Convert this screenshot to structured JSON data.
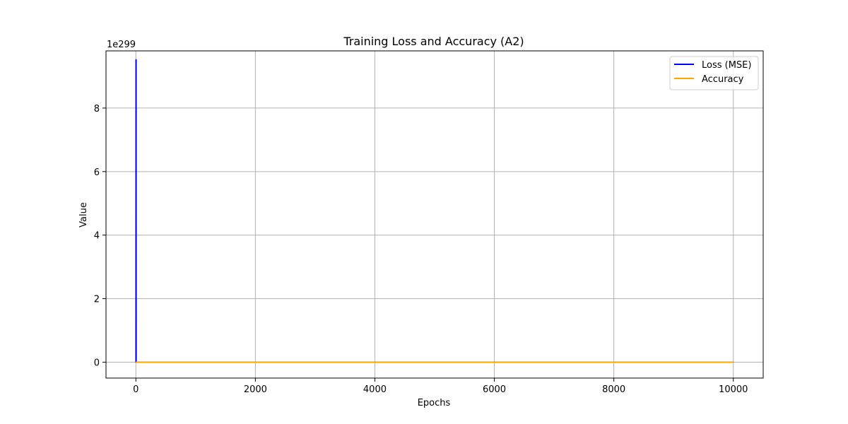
{
  "chart_data": {
    "type": "line",
    "title": "Training Loss and Accuracy (A2)",
    "xlabel": "Epochs",
    "ylabel": "Value",
    "y_offset_text": "1e299",
    "xlim": [
      -500,
      10500
    ],
    "ylim": [
      -0.5,
      9.8
    ],
    "xticks": [
      0,
      2000,
      4000,
      6000,
      8000,
      10000
    ],
    "yticks": [
      0,
      2,
      4,
      6,
      8
    ],
    "grid": true,
    "legend_position": "top-right",
    "series": [
      {
        "name": "Loss (MSE)",
        "color": "#0000ff",
        "x": [
          0,
          1,
          2,
          3,
          4,
          5,
          10000
        ],
        "y": [
          0,
          0.0001,
          0.02,
          9.52,
          0,
          0,
          0
        ]
      },
      {
        "name": "Accuracy",
        "color": "#ffa500",
        "x": [
          0,
          10000
        ],
        "y": [
          0,
          0
        ]
      }
    ]
  }
}
